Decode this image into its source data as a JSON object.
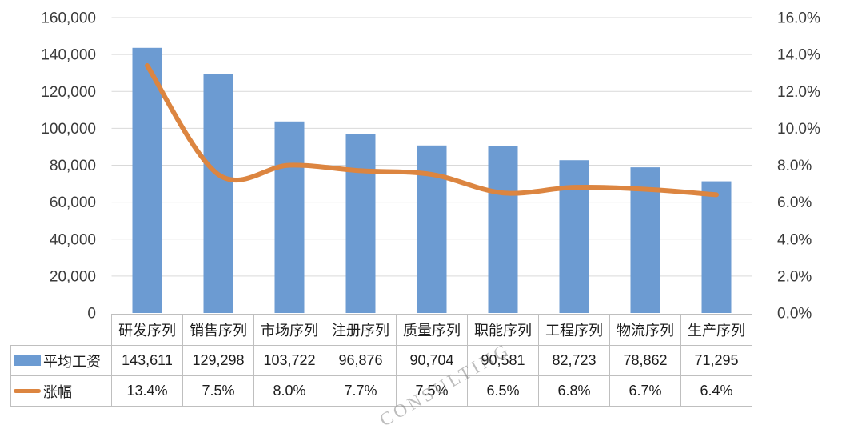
{
  "watermark": "CONSULTING",
  "chart_data": {
    "type": "combo-bar-line",
    "title": "",
    "categories": [
      "研发序列",
      "销售序列",
      "市场序列",
      "注册序列",
      "质量序列",
      "职能序列",
      "工程序列",
      "物流序列",
      "生产序列"
    ],
    "series": [
      {
        "name": "平均工资",
        "type": "bar",
        "color": "#6C9BD2",
        "axis": "left",
        "values": [
          143611,
          129298,
          103722,
          96876,
          90704,
          90581,
          82723,
          78862,
          71295
        ],
        "display_values": [
          "143,611",
          "129,298",
          "103,722",
          "96,876",
          "90,704",
          "90,581",
          "82,723",
          "78,862",
          "71,295"
        ]
      },
      {
        "name": "涨幅",
        "type": "line",
        "color": "#DC8540",
        "axis": "right",
        "values": [
          13.4,
          7.5,
          8.0,
          7.7,
          7.5,
          6.5,
          6.8,
          6.7,
          6.4
        ],
        "display_values": [
          "13.4%",
          "7.5%",
          "8.0%",
          "7.7%",
          "7.5%",
          "6.5%",
          "6.8%",
          "6.7%",
          "6.4%"
        ]
      }
    ],
    "left_axis": {
      "min": 0,
      "max": 160000,
      "step": 20000,
      "tick_labels": [
        "160,000",
        "140,000",
        "120,000",
        "100,000",
        "80,000",
        "60,000",
        "40,000",
        "20,000",
        "0"
      ]
    },
    "right_axis": {
      "min": 0,
      "max": 16,
      "step": 2,
      "tick_labels": [
        "16.0%",
        "14.0%",
        "12.0%",
        "10.0%",
        "8.0%",
        "6.0%",
        "4.0%",
        "2.0%",
        "0.0%"
      ]
    },
    "grid": true,
    "legend_position": "data-table-left",
    "colors": {
      "bar": "#6C9BD2",
      "line": "#DC8540",
      "gridline": "#D9D9D9",
      "table_border": "#BFBFBF",
      "text": "#1D1D1D",
      "axis_text": "#3A3A3A"
    }
  }
}
